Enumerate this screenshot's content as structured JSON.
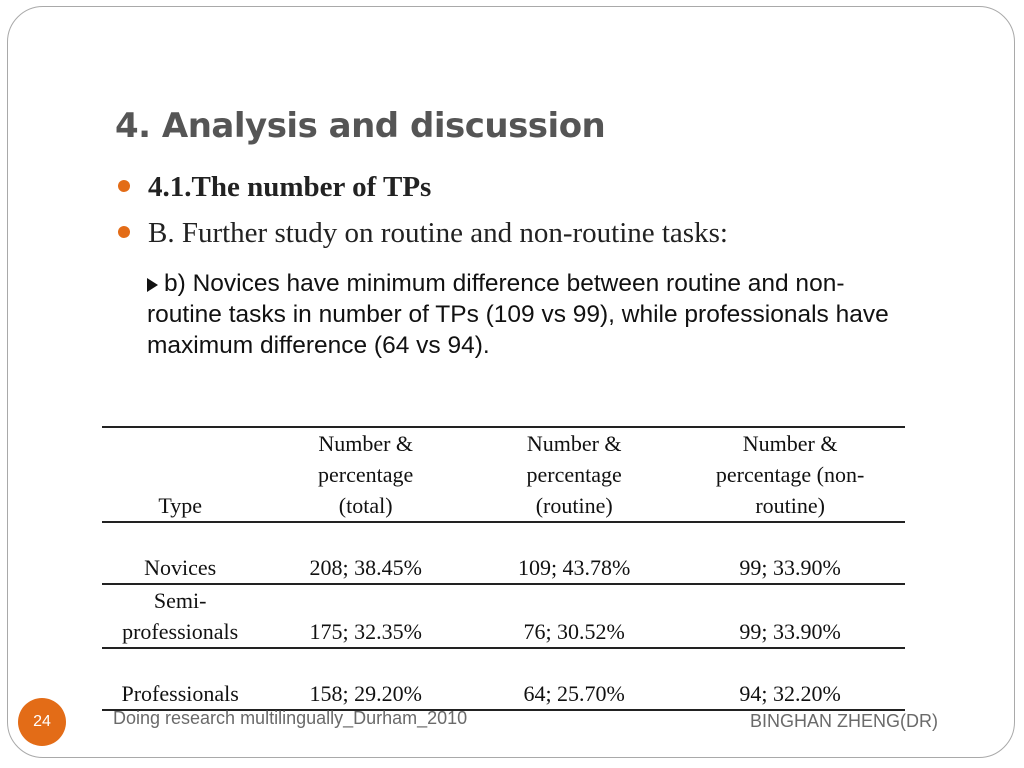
{
  "title": "4. Analysis and discussion",
  "bullets": [
    "4.1.The number of TPs",
    "B. Further study on routine and non-routine tasks:"
  ],
  "sub_point": "b) Novices have minimum difference between routine and non-routine tasks in number of TPs (109 vs 99), while professionals have maximum difference (64 vs 94).",
  "table": {
    "headers": [
      "Type",
      "Number & percentage (total)",
      "Number & percentage (routine)",
      "Number & percentage (non-routine)"
    ],
    "rows": [
      [
        "Novices",
        "208; 38.45%",
        "109; 43.78%",
        "99; 33.90%"
      ],
      [
        "Semi-professionals",
        "175; 32.35%",
        "76; 30.52%",
        "99; 33.90%"
      ],
      [
        "Professionals",
        "158; 29.20%",
        "64; 25.70%",
        "94; 32.20%"
      ]
    ]
  },
  "footer": {
    "page_number": "24",
    "left_text": "Doing research multilingually_Durham_2010",
    "right_text": "BINGHAN ZHENG(DR)"
  },
  "colors": {
    "accent": "#e36c17",
    "title": "#555555",
    "footer": "#6a6a6a"
  }
}
